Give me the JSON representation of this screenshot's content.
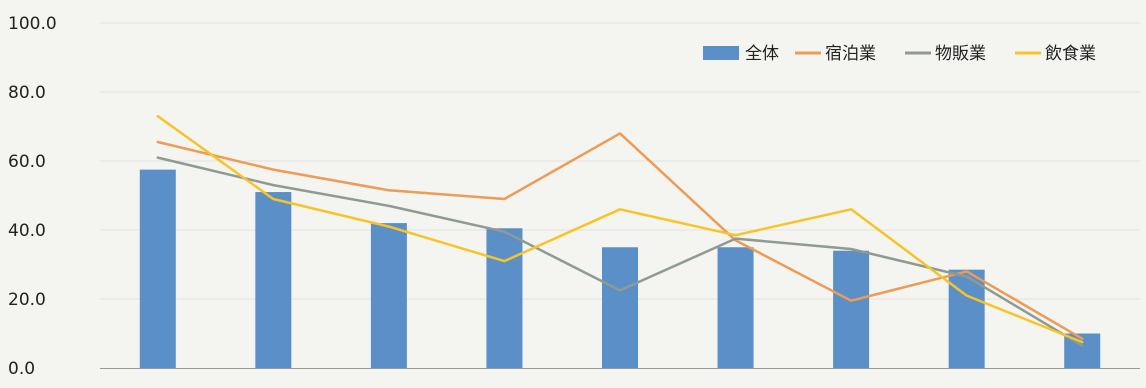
{
  "chart_data": {
    "type": "bar",
    "title": "",
    "xlabel": "",
    "ylabel": "",
    "ylim": [
      0,
      100
    ],
    "y_ticks": [
      "100.0",
      "80.0",
      "60.0",
      "40.0",
      "20.0",
      "0.0"
    ],
    "categories": [
      "",
      "",
      "",
      "",
      "",
      "",
      "",
      "",
      ""
    ],
    "legend_position": "top-right",
    "grid": true,
    "bar_series": {
      "name": "全体",
      "color": "#5b8fc7",
      "values": [
        57.5,
        51.0,
        42.0,
        40.5,
        35.0,
        35.0,
        34.0,
        28.5,
        10.0
      ]
    },
    "series": [
      {
        "name": "宿泊業",
        "color": "#ed9b55",
        "values": [
          65.5,
          57.5,
          51.5,
          49.0,
          68.0,
          37.0,
          19.5,
          28.0,
          8.5
        ]
      },
      {
        "name": "物販業",
        "color": "#8f9a92",
        "values": [
          61.0,
          53.0,
          47.0,
          39.5,
          22.5,
          37.5,
          34.5,
          26.5,
          6.5
        ]
      },
      {
        "name": "飲食業",
        "color": "#f7c428",
        "values": [
          73.0,
          49.0,
          41.0,
          31.0,
          46.0,
          38.5,
          46.0,
          21.0,
          7.5
        ]
      }
    ]
  }
}
